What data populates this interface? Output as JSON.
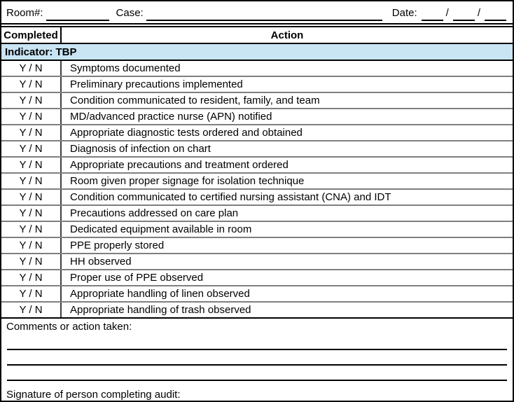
{
  "header": {
    "room_label": "Room#:",
    "case_label": "Case:",
    "date_label": "Date:",
    "date_separator": "/"
  },
  "table": {
    "completed_header": "Completed",
    "action_header": "Action",
    "indicator_label": "Indicator: TBP",
    "yn_label": "Y / N",
    "rows": [
      "Symptoms documented",
      "Preliminary precautions implemented",
      "Condition communicated to resident, family, and team",
      "MD/advanced practice nurse (APN) notified",
      "Appropriate diagnostic tests ordered and obtained",
      "Diagnosis of infection on chart",
      "Appropriate precautions and treatment ordered",
      "Room given proper signage for isolation technique",
      "Condition communicated to certified nursing assistant (CNA) and IDT",
      "Precautions addressed on care plan",
      "Dedicated equipment available in room",
      "PPE properly stored",
      "HH observed",
      "Proper use of PPE observed",
      "Appropriate handling of linen observed",
      "Appropriate handling of trash observed"
    ]
  },
  "footer": {
    "comments_label": "Comments or action taken:",
    "signature_label": "Signature of person completing audit:",
    "comment_line_count": 3
  },
  "colors": {
    "indicator_bg": "#c9e4f3",
    "border_dark": "#000000",
    "row_divider_gray": "#7f7f7f"
  }
}
